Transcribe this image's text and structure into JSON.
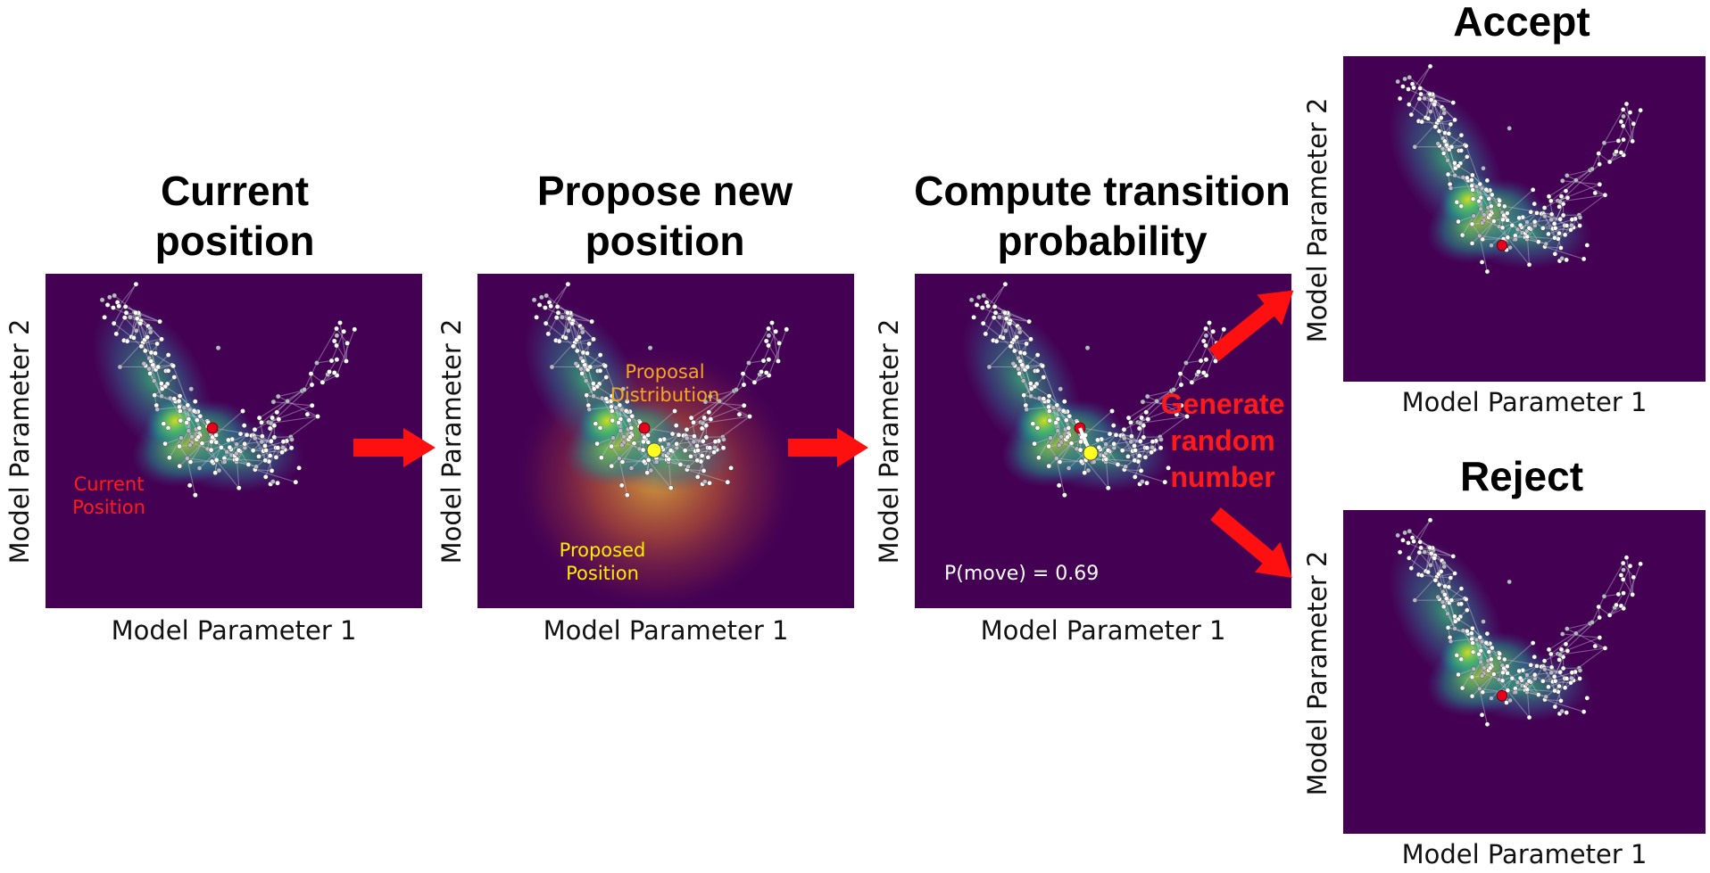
{
  "colors": {
    "panel_bg": "#440154",
    "arrow": "#ff1010",
    "current_point": "#e8001a",
    "proposed_point": "#ffff22",
    "current_label": "#ff1a1a",
    "proposal_label": "#f5a623",
    "proposed_label": "#ffee00",
    "pmove_label": "#ffffff"
  },
  "panels": [
    {
      "id": "current",
      "title": [
        "Current",
        "position"
      ],
      "xlabel": "Model Parameter 1",
      "ylabel": "Model Parameter 2"
    },
    {
      "id": "propose",
      "title": [
        "Propose new",
        "position"
      ],
      "xlabel": "Model Parameter 1",
      "ylabel": "Model Parameter 2"
    },
    {
      "id": "compute",
      "title": [
        "Compute transition",
        "probability"
      ],
      "xlabel": "Model Parameter 1",
      "ylabel": "Model Parameter 2"
    },
    {
      "id": "accept",
      "title": [
        "Accept"
      ],
      "xlabel": "Model Parameter 1",
      "ylabel": "Model Parameter 2"
    },
    {
      "id": "reject",
      "title": [
        "Reject"
      ],
      "xlabel": "Model Parameter 1",
      "ylabel": "Model Parameter 2"
    }
  ],
  "annotations": {
    "current_position": [
      "Current",
      "Position"
    ],
    "proposal_distribution": [
      "Proposal",
      "Distribution"
    ],
    "proposed_position": [
      "Proposed",
      "Position"
    ],
    "p_move": "P(move) = 0.69",
    "generate_random_number": [
      "Generate",
      "random",
      "number"
    ]
  }
}
